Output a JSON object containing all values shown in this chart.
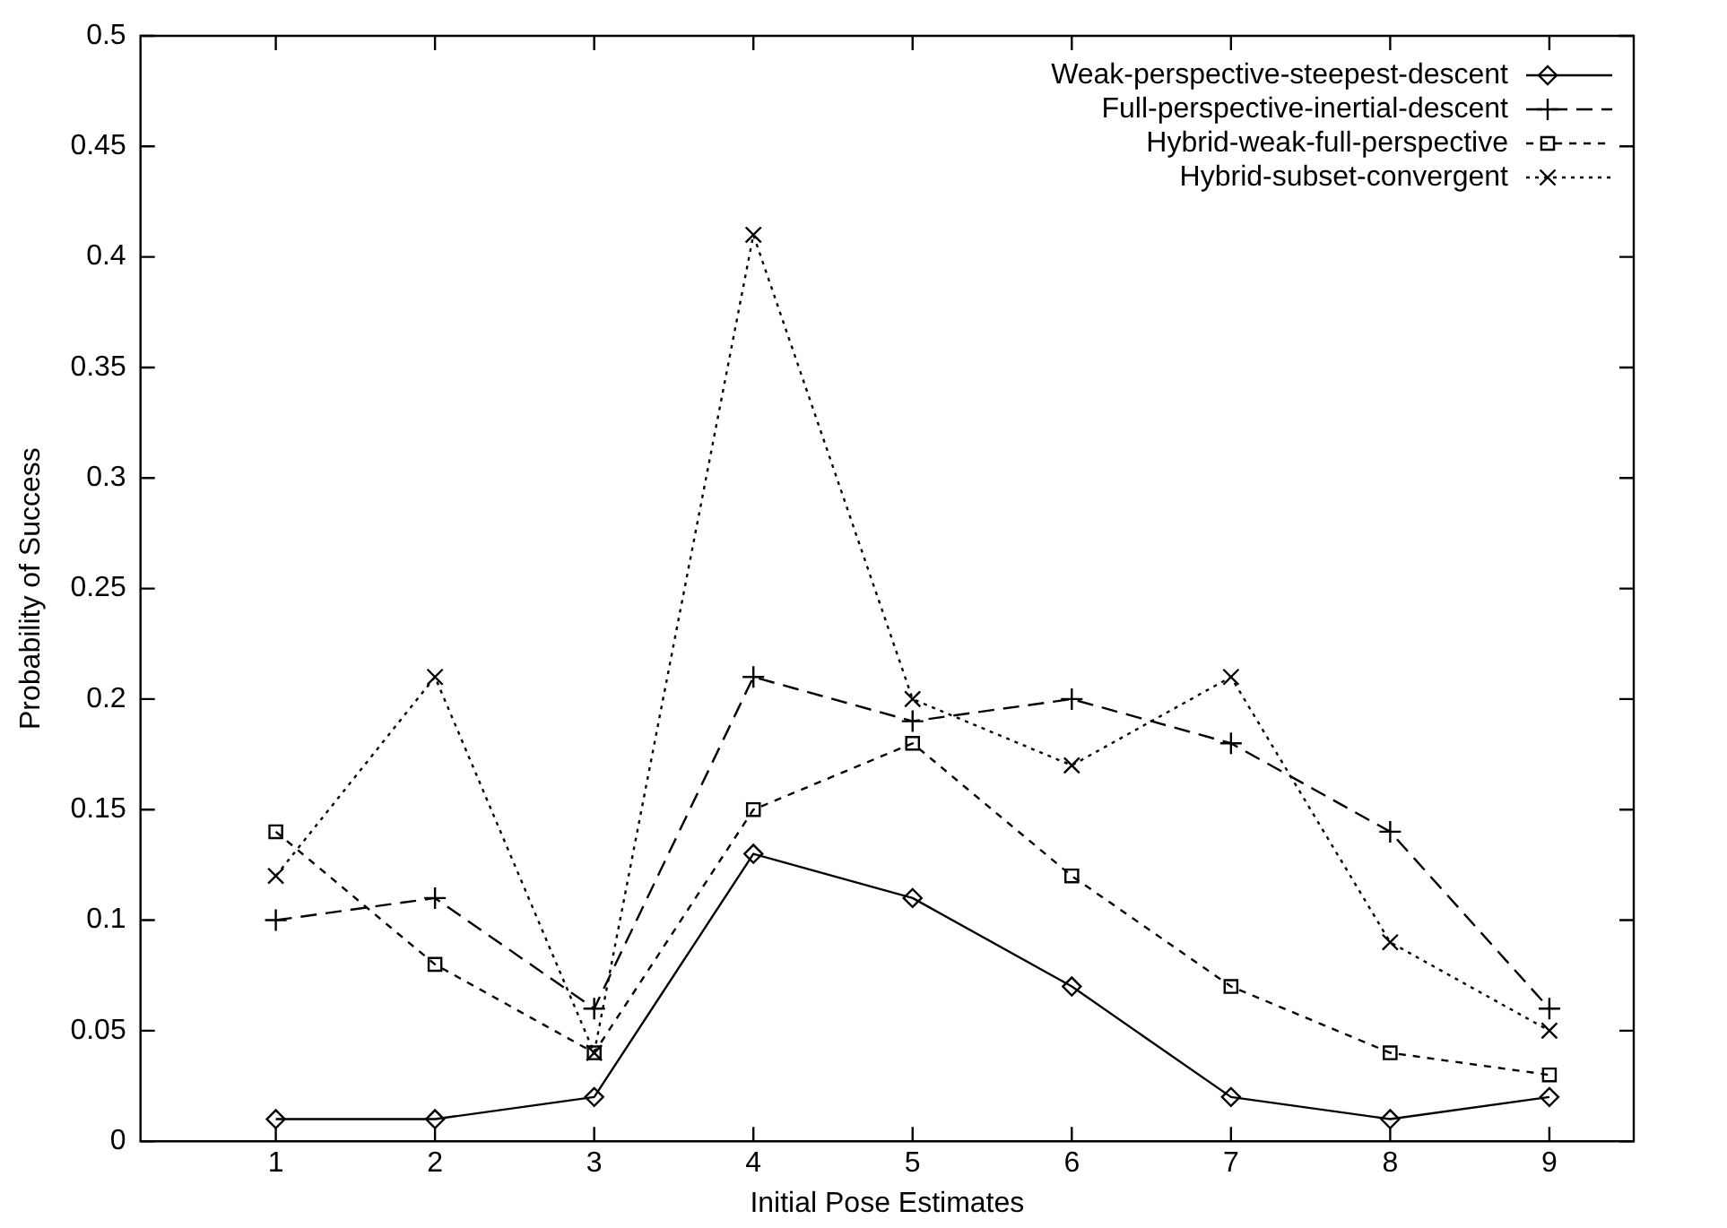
{
  "chart_data": {
    "type": "line",
    "xlabel": "Initial Pose Estimates",
    "ylabel": "Probability of Success",
    "x": [
      1,
      2,
      3,
      4,
      5,
      6,
      7,
      8,
      9
    ],
    "xlim": [
      0.15,
      9.53
    ],
    "xticks": [
      1,
      2,
      3,
      4,
      5,
      6,
      7,
      8,
      9
    ],
    "ylim": [
      0,
      0.5
    ],
    "yticks": [
      0,
      0.05,
      0.1,
      0.15,
      0.2,
      0.25,
      0.3,
      0.35,
      0.4,
      0.45,
      0.5
    ],
    "legend": "top right",
    "grid": false,
    "series": [
      {
        "name": "Weak-perspective-steepest-descent",
        "color": "#000000",
        "marker": "diamond",
        "line_style": "solid",
        "values": [
          0.01,
          0.01,
          0.02,
          0.13,
          0.11,
          0.07,
          0.02,
          0.01,
          0.02
        ]
      },
      {
        "name": "Full-perspective-inertial-descent",
        "color": "#000000",
        "marker": "cross",
        "line_style": "dashed",
        "values": [
          0.1,
          0.11,
          0.06,
          0.21,
          0.19,
          0.2,
          0.18,
          0.14,
          0.06
        ]
      },
      {
        "name": "Hybrid-weak-full-perspective",
        "color": "#000000",
        "marker": "square",
        "line_style": "dashed",
        "values": [
          0.14,
          0.08,
          0.04,
          0.15,
          0.18,
          0.12,
          0.07,
          0.04,
          0.03
        ]
      },
      {
        "name": "Hybrid-subset-convergent",
        "color": "#000000",
        "marker": "x",
        "line_style": "dotted",
        "values": [
          0.12,
          0.21,
          0.04,
          0.41,
          0.2,
          0.17,
          0.21,
          0.09,
          0.05
        ]
      }
    ]
  }
}
